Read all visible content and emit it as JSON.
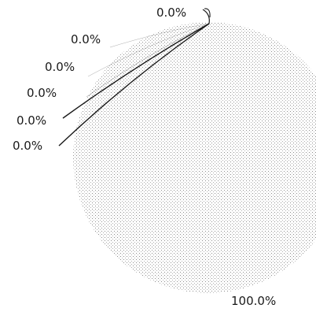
{
  "chart_data": {
    "type": "pie",
    "slices": [
      {
        "value": 0.0,
        "label": "0.0%"
      },
      {
        "value": 0.0,
        "label": "0.0%"
      },
      {
        "value": 0.0,
        "label": "0.0%"
      },
      {
        "value": 0.0,
        "label": "0.0%"
      },
      {
        "value": 0.0,
        "label": "0.0%"
      },
      {
        "value": 0.0,
        "label": "0.0%"
      },
      {
        "value": 100.0,
        "label": "100.0%"
      }
    ],
    "fill": "dotted-light-gray",
    "leader_line_color": "#1a1a1a"
  }
}
